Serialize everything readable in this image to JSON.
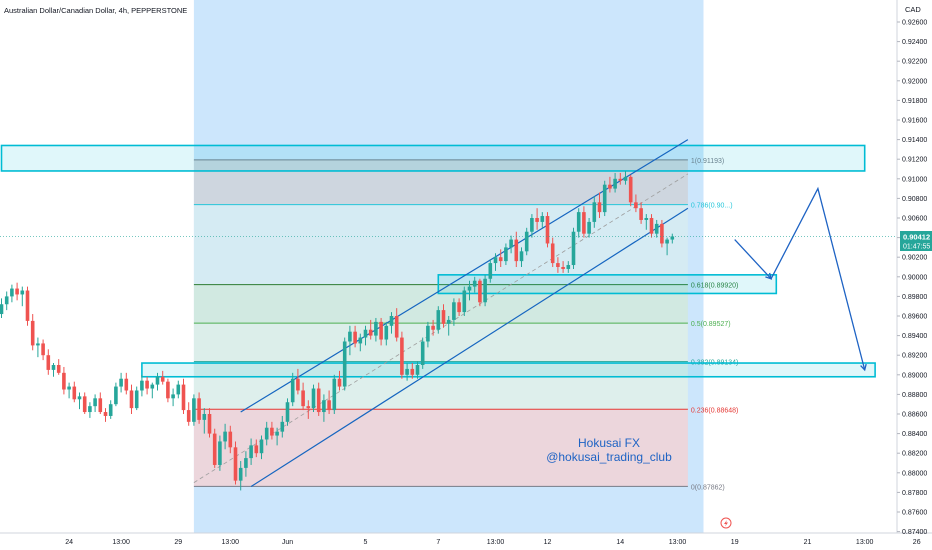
{
  "header": {
    "title": "Australian Dollar/Canadian Dollar, 4h, PEPPERSTONE",
    "currency": "CAD"
  },
  "brand": {
    "line1": "Hokusai FX",
    "line2": "@hokusai_trading_club"
  },
  "last_price": {
    "price": "0.90412",
    "countdown": "01:47:55"
  },
  "colors": {
    "up": "#26a69a",
    "down": "#ef5350",
    "zone": "#00bcd4",
    "channel": "#1565c0",
    "forecast": "#1e63c4",
    "highlight": "#bbdefb",
    "text": "#131722"
  },
  "chart_data": {
    "type": "candlestick",
    "title": "Australian Dollar/Canadian Dollar, 4h, PEPPERSTONE",
    "ylim": [
      0.874,
      0.928
    ],
    "y_ticks": [
      "0.92600",
      "0.92400",
      "0.92200",
      "0.92000",
      "0.91800",
      "0.91600",
      "0.91400",
      "0.91200",
      "0.91000",
      "0.90800",
      "0.90600",
      "0.90400",
      "0.90200",
      "0.90000",
      "0.89800",
      "0.89600",
      "0.89400",
      "0.89200",
      "0.89000",
      "0.88800",
      "0.88600",
      "0.88400",
      "0.88200",
      "0.88000",
      "0.87800",
      "0.87600",
      "0.87400"
    ],
    "x_ticks": [
      {
        "label": "24",
        "bar": 13
      },
      {
        "label": "13:00",
        "bar": 23
      },
      {
        "label": "29",
        "bar": 34
      },
      {
        "label": "13:00",
        "bar": 44
      },
      {
        "label": "Jun",
        "bar": 55
      },
      {
        "label": "5",
        "bar": 70
      },
      {
        "label": "7",
        "bar": 84
      },
      {
        "label": "13:00",
        "bar": 95
      },
      {
        "label": "12",
        "bar": 105
      },
      {
        "label": "14",
        "bar": 119
      },
      {
        "label": "13:00",
        "bar": 130
      },
      {
        "label": "19",
        "bar": 141
      },
      {
        "label": "21",
        "bar": 155
      },
      {
        "label": "13:00",
        "bar": 166
      },
      {
        "label": "26",
        "bar": 176
      }
    ],
    "ohlc": [
      [
        0.8962,
        0.8978,
        0.8958,
        0.8972
      ],
      [
        0.8972,
        0.8985,
        0.8966,
        0.898
      ],
      [
        0.898,
        0.8992,
        0.8974,
        0.8988
      ],
      [
        0.8988,
        0.8994,
        0.8976,
        0.8982
      ],
      [
        0.8982,
        0.899,
        0.897,
        0.8986
      ],
      [
        0.8986,
        0.899,
        0.895,
        0.8955
      ],
      [
        0.8955,
        0.8962,
        0.8925,
        0.893
      ],
      [
        0.893,
        0.8938,
        0.8918,
        0.8932
      ],
      [
        0.8932,
        0.8936,
        0.8915,
        0.892
      ],
      [
        0.892,
        0.8926,
        0.89,
        0.8905
      ],
      [
        0.8905,
        0.8912,
        0.8898,
        0.891
      ],
      [
        0.891,
        0.8916,
        0.89,
        0.8902
      ],
      [
        0.8902,
        0.8908,
        0.888,
        0.8885
      ],
      [
        0.8885,
        0.8892,
        0.8876,
        0.8888
      ],
      [
        0.8888,
        0.8893,
        0.8872,
        0.8875
      ],
      [
        0.8875,
        0.8882,
        0.8865,
        0.8878
      ],
      [
        0.8878,
        0.8882,
        0.886,
        0.8862
      ],
      [
        0.8862,
        0.8872,
        0.8856,
        0.8868
      ],
      [
        0.8868,
        0.888,
        0.8862,
        0.8876
      ],
      [
        0.8876,
        0.8882,
        0.886,
        0.8862
      ],
      [
        0.8862,
        0.8866,
        0.8852,
        0.8858
      ],
      [
        0.8858,
        0.8874,
        0.8855,
        0.887
      ],
      [
        0.887,
        0.8892,
        0.8868,
        0.8888
      ],
      [
        0.8888,
        0.8902,
        0.8882,
        0.8896
      ],
      [
        0.8896,
        0.8902,
        0.888,
        0.8884
      ],
      [
        0.8884,
        0.889,
        0.886,
        0.8866
      ],
      [
        0.8866,
        0.8888,
        0.8864,
        0.8884
      ],
      [
        0.8884,
        0.89,
        0.8878,
        0.8894
      ],
      [
        0.8894,
        0.8898,
        0.888,
        0.8886
      ],
      [
        0.8886,
        0.8892,
        0.8876,
        0.889
      ],
      [
        0.889,
        0.8902,
        0.8884,
        0.8898
      ],
      [
        0.8898,
        0.8904,
        0.889,
        0.8893
      ],
      [
        0.8893,
        0.8896,
        0.8872,
        0.8876
      ],
      [
        0.8876,
        0.8886,
        0.8868,
        0.888
      ],
      [
        0.888,
        0.8894,
        0.8876,
        0.889
      ],
      [
        0.889,
        0.8896,
        0.886,
        0.8864
      ],
      [
        0.8864,
        0.8872,
        0.8848,
        0.8852
      ],
      [
        0.8852,
        0.888,
        0.8848,
        0.8876
      ],
      [
        0.8876,
        0.8882,
        0.885,
        0.8854
      ],
      [
        0.8854,
        0.8866,
        0.884,
        0.886
      ],
      [
        0.886,
        0.8866,
        0.8836,
        0.884
      ],
      [
        0.884,
        0.8845,
        0.8805,
        0.8808
      ],
      [
        0.8808,
        0.8838,
        0.8802,
        0.8832
      ],
      [
        0.8832,
        0.885,
        0.8824,
        0.8842
      ],
      [
        0.8842,
        0.8848,
        0.882,
        0.8826
      ],
      [
        0.8826,
        0.8832,
        0.8788,
        0.8792
      ],
      [
        0.8792,
        0.8812,
        0.8782,
        0.8805
      ],
      [
        0.8805,
        0.8822,
        0.8796,
        0.8815
      ],
      [
        0.8815,
        0.8835,
        0.8808,
        0.8828
      ],
      [
        0.8828,
        0.8834,
        0.8816,
        0.882
      ],
      [
        0.882,
        0.8838,
        0.8814,
        0.8834
      ],
      [
        0.8834,
        0.8852,
        0.8828,
        0.8846
      ],
      [
        0.8846,
        0.8852,
        0.8834,
        0.8838
      ],
      [
        0.8838,
        0.8846,
        0.8828,
        0.8842
      ],
      [
        0.8842,
        0.8858,
        0.8836,
        0.8852
      ],
      [
        0.8852,
        0.8876,
        0.8848,
        0.8872
      ],
      [
        0.8872,
        0.8902,
        0.8868,
        0.8896
      ],
      [
        0.8896,
        0.8906,
        0.888,
        0.8884
      ],
      [
        0.8884,
        0.8892,
        0.8864,
        0.8868
      ],
      [
        0.8868,
        0.8874,
        0.8855,
        0.8866
      ],
      [
        0.8866,
        0.889,
        0.8862,
        0.8886
      ],
      [
        0.8886,
        0.8892,
        0.8858,
        0.8862
      ],
      [
        0.8862,
        0.888,
        0.8852,
        0.8874
      ],
      [
        0.8874,
        0.8884,
        0.886,
        0.8864
      ],
      [
        0.8864,
        0.89,
        0.886,
        0.8896
      ],
      [
        0.8896,
        0.8904,
        0.8884,
        0.8888
      ],
      [
        0.8888,
        0.8938,
        0.8884,
        0.8934
      ],
      [
        0.8934,
        0.895,
        0.892,
        0.8944
      ],
      [
        0.8944,
        0.895,
        0.8928,
        0.8932
      ],
      [
        0.8932,
        0.8942,
        0.8924,
        0.8938
      ],
      [
        0.8938,
        0.895,
        0.893,
        0.8946
      ],
      [
        0.8946,
        0.8956,
        0.8936,
        0.894
      ],
      [
        0.894,
        0.8958,
        0.8934,
        0.8954
      ],
      [
        0.8954,
        0.8958,
        0.893,
        0.8936
      ],
      [
        0.8936,
        0.8954,
        0.893,
        0.895
      ],
      [
        0.895,
        0.8964,
        0.8942,
        0.896
      ],
      [
        0.896,
        0.8968,
        0.8934,
        0.8938
      ],
      [
        0.8938,
        0.8944,
        0.8896,
        0.89
      ],
      [
        0.89,
        0.8912,
        0.8894,
        0.8906
      ],
      [
        0.8906,
        0.8912,
        0.8896,
        0.89
      ],
      [
        0.89,
        0.8914,
        0.8896,
        0.891
      ],
      [
        0.891,
        0.8938,
        0.8906,
        0.8934
      ],
      [
        0.8934,
        0.8954,
        0.8928,
        0.895
      ],
      [
        0.895,
        0.8956,
        0.894,
        0.8946
      ],
      [
        0.8946,
        0.897,
        0.8942,
        0.8966
      ],
      [
        0.8966,
        0.8972,
        0.8948,
        0.8952
      ],
      [
        0.8952,
        0.896,
        0.894,
        0.8956
      ],
      [
        0.8956,
        0.8978,
        0.895,
        0.8974
      ],
      [
        0.8974,
        0.8978,
        0.896,
        0.8964
      ],
      [
        0.8964,
        0.899,
        0.896,
        0.8986
      ],
      [
        0.8986,
        0.8996,
        0.8976,
        0.899
      ],
      [
        0.899,
        0.9,
        0.8984,
        0.8996
      ],
      [
        0.8996,
        0.8998,
        0.897,
        0.8974
      ],
      [
        0.8974,
        0.9002,
        0.897,
        0.8998
      ],
      [
        0.8998,
        0.9018,
        0.8994,
        0.9014
      ],
      [
        0.9014,
        0.9024,
        0.9006,
        0.902
      ],
      [
        0.902,
        0.9028,
        0.901,
        0.9016
      ],
      [
        0.9016,
        0.9034,
        0.9012,
        0.903
      ],
      [
        0.903,
        0.9042,
        0.9024,
        0.9038
      ],
      [
        0.9038,
        0.9046,
        0.901,
        0.9016
      ],
      [
        0.9016,
        0.903,
        0.901,
        0.9026
      ],
      [
        0.9026,
        0.905,
        0.9022,
        0.9046
      ],
      [
        0.9046,
        0.9064,
        0.904,
        0.906
      ],
      [
        0.906,
        0.907,
        0.9048,
        0.9056
      ],
      [
        0.9056,
        0.9066,
        0.905,
        0.9062
      ],
      [
        0.9062,
        0.9066,
        0.903,
        0.9034
      ],
      [
        0.9034,
        0.904,
        0.901,
        0.9014
      ],
      [
        0.9014,
        0.902,
        0.9004,
        0.901
      ],
      [
        0.901,
        0.9016,
        0.9004,
        0.9008
      ],
      [
        0.9008,
        0.9016,
        0.9004,
        0.9012
      ],
      [
        0.9012,
        0.905,
        0.9008,
        0.9046
      ],
      [
        0.9046,
        0.907,
        0.904,
        0.9066
      ],
      [
        0.9066,
        0.9072,
        0.904,
        0.9044
      ],
      [
        0.9044,
        0.906,
        0.904,
        0.9056
      ],
      [
        0.9056,
        0.9082,
        0.905,
        0.9076
      ],
      [
        0.9076,
        0.9086,
        0.906,
        0.9066
      ],
      [
        0.9066,
        0.9098,
        0.9062,
        0.9094
      ],
      [
        0.9094,
        0.9102,
        0.9086,
        0.909
      ],
      [
        0.909,
        0.9106,
        0.9086,
        0.91
      ],
      [
        0.91,
        0.9106,
        0.9094,
        0.9098
      ],
      [
        0.9098,
        0.9108,
        0.9094,
        0.9102
      ],
      [
        0.9102,
        0.9104,
        0.9072,
        0.9076
      ],
      [
        0.9076,
        0.9084,
        0.9066,
        0.907
      ],
      [
        0.907,
        0.9076,
        0.9054,
        0.9058
      ],
      [
        0.9058,
        0.9064,
        0.9048,
        0.906
      ],
      [
        0.906,
        0.9064,
        0.904,
        0.9044
      ],
      [
        0.9044,
        0.9058,
        0.904,
        0.9054
      ],
      [
        0.9054,
        0.9058,
        0.903,
        0.9034
      ],
      [
        0.9034,
        0.904,
        0.9022,
        0.9038
      ],
      [
        0.9038,
        0.9044,
        0.9034,
        0.90412
      ]
    ],
    "fib_levels": [
      {
        "label": "1(0.91193)",
        "value": 0.91193,
        "color": "#787b86"
      },
      {
        "label": "0.786(0.90...)",
        "value": 0.90736,
        "color": "#26c6da"
      },
      {
        "label": "0.618(0.89920)",
        "value": 0.8992,
        "color": "#2e7d32"
      },
      {
        "label": "0.5(0.89527)",
        "value": 0.89527,
        "color": "#4caf50"
      },
      {
        "label": "0.382(0.89134)",
        "value": 0.89134,
        "color": "#26a69a"
      },
      {
        "label": "0.236(0.88648)",
        "value": 0.88648,
        "color": "#e53935"
      },
      {
        "label": "0(0.87862)",
        "value": 0.87862,
        "color": "#787b86"
      }
    ],
    "fib_range": {
      "from_bar": 37,
      "to_bar": 132
    },
    "channel": {
      "upper": [
        [
          46,
          0.8862
        ],
        [
          132,
          0.914
        ]
      ],
      "lower": [
        [
          48,
          0.8786
        ],
        [
          132,
          0.907
        ]
      ],
      "mid": [
        [
          37,
          0.879
        ],
        [
          132,
          0.9105
        ]
      ]
    },
    "zones": [
      {
        "name": "resistance-zone",
        "from_bar": 0,
        "to_bar": 166,
        "high": 0.9134,
        "low": 0.9108
      },
      {
        "name": "fib-618-zone",
        "from_bar": 84,
        "to_bar": 149,
        "high": 0.9002,
        "low": 0.8983
      },
      {
        "name": "support-zone",
        "from_bar": 27,
        "to_bar": 168,
        "high": 0.8912,
        "low": 0.8898
      }
    ],
    "forecast_path": [
      [
        141,
        0.9038
      ],
      [
        148,
        0.8998
      ],
      [
        157,
        0.909
      ],
      [
        166,
        0.8905
      ]
    ],
    "time_highlight": {
      "from_bar": 37,
      "to_bar": 135
    }
  }
}
